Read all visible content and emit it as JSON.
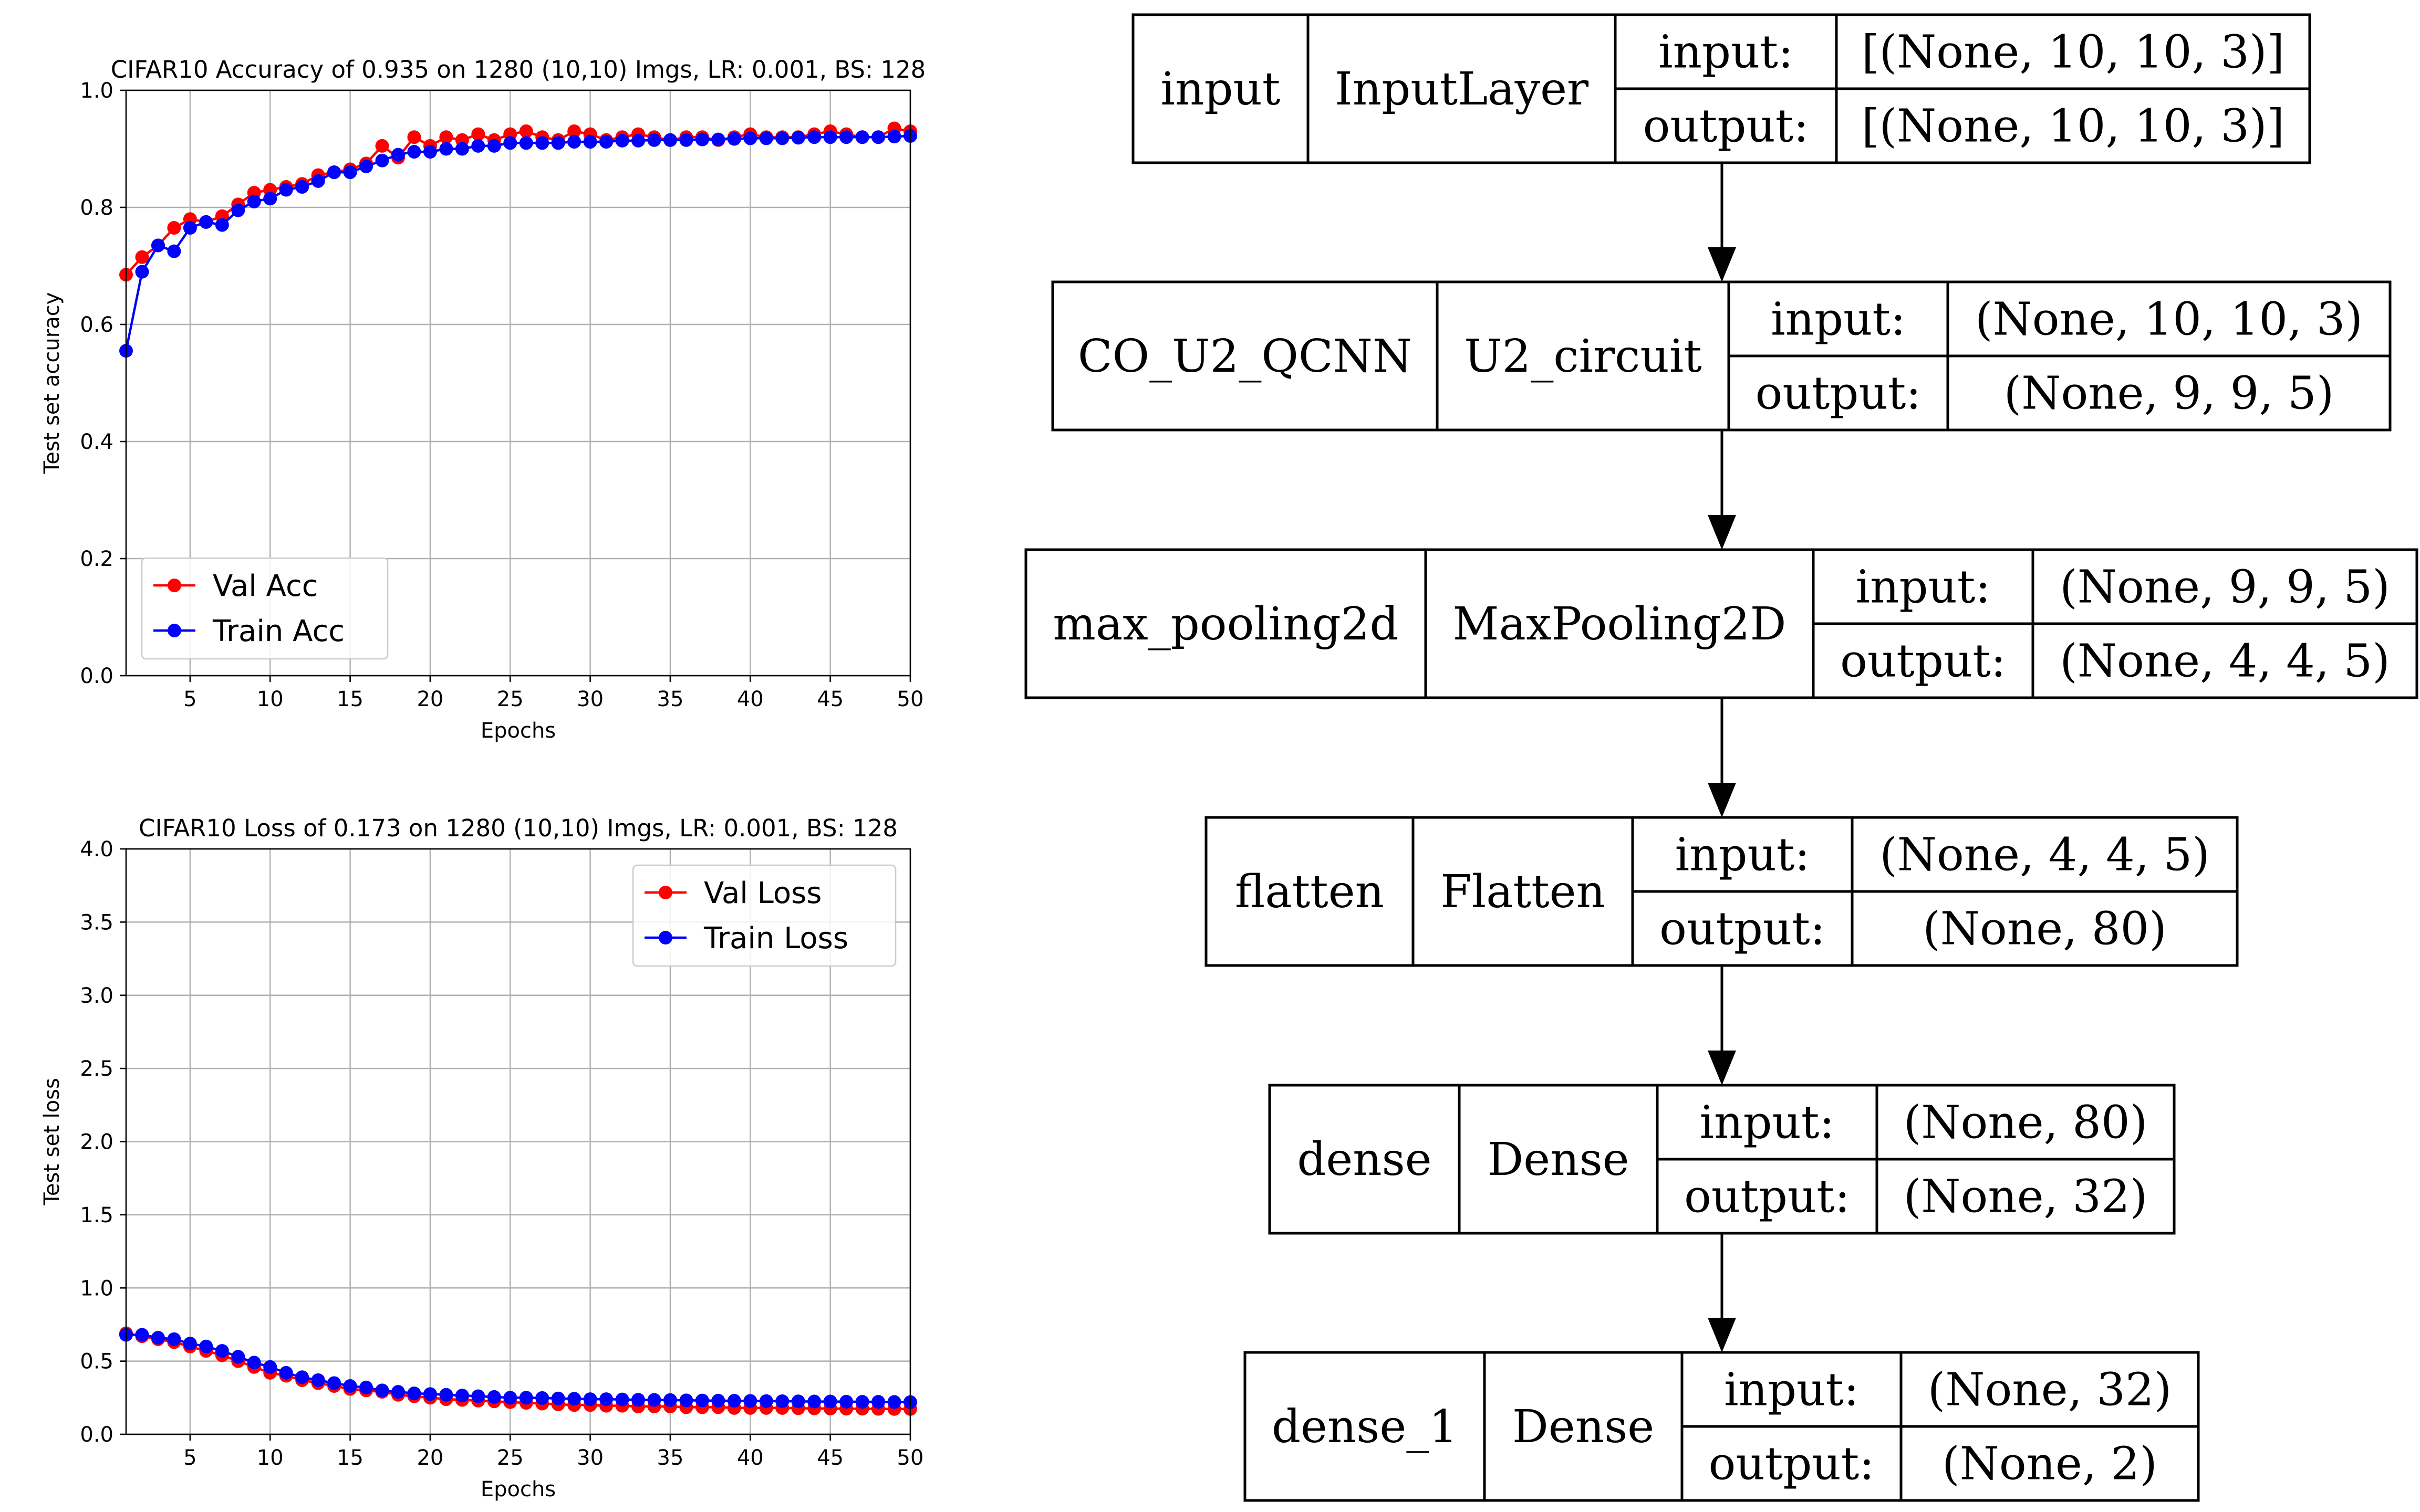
{
  "colors": {
    "val": "#ff0000",
    "train": "#0000ff",
    "grid": "#b0b0b0",
    "axis": "#000000",
    "legend_border": "#cccccc"
  },
  "chart_data": [
    {
      "type": "line",
      "title": "CIFAR10 Accuracy of 0.935 on 1280 (10,10) Imgs, LR: 0.001, BS: 128",
      "xlabel": "Epochs",
      "ylabel": "Test set accuracy",
      "xlim": [
        1,
        50
      ],
      "ylim": [
        0,
        1
      ],
      "xticks": [
        5,
        10,
        15,
        20,
        25,
        30,
        35,
        40,
        45,
        50
      ],
      "xtick_labels": [
        "5",
        "10",
        "15",
        "20",
        "25",
        "30",
        "35",
        "40",
        "45",
        "50"
      ],
      "yticks": [
        0,
        0.2,
        0.4,
        0.6,
        0.8,
        1.0
      ],
      "ytick_labels": [
        "0.0",
        "0.2",
        "0.4",
        "0.6",
        "0.8",
        "1.0"
      ],
      "grid": true,
      "legend_position": "lower-left",
      "x": [
        1,
        2,
        3,
        4,
        5,
        6,
        7,
        8,
        9,
        10,
        11,
        12,
        13,
        14,
        15,
        16,
        17,
        18,
        19,
        20,
        21,
        22,
        23,
        24,
        25,
        26,
        27,
        28,
        29,
        30,
        31,
        32,
        33,
        34,
        35,
        36,
        37,
        38,
        39,
        40,
        41,
        42,
        43,
        44,
        45,
        46,
        47,
        48,
        49,
        50
      ],
      "series": [
        {
          "name": "Val Acc",
          "color": "red",
          "values": [
            0.685,
            0.715,
            0.735,
            0.765,
            0.78,
            0.775,
            0.785,
            0.805,
            0.825,
            0.83,
            0.835,
            0.84,
            0.855,
            0.86,
            0.865,
            0.875,
            0.905,
            0.885,
            0.92,
            0.905,
            0.92,
            0.915,
            0.925,
            0.915,
            0.925,
            0.93,
            0.92,
            0.915,
            0.93,
            0.925,
            0.915,
            0.92,
            0.925,
            0.92,
            0.915,
            0.92,
            0.92,
            0.915,
            0.92,
            0.925,
            0.92,
            0.92,
            0.92,
            0.925,
            0.93,
            0.925,
            0.92,
            0.92,
            0.935,
            0.93
          ]
        },
        {
          "name": "Train Acc",
          "color": "blue",
          "values": [
            0.555,
            0.69,
            0.735,
            0.725,
            0.765,
            0.775,
            0.77,
            0.795,
            0.81,
            0.815,
            0.83,
            0.835,
            0.845,
            0.86,
            0.86,
            0.87,
            0.88,
            0.89,
            0.895,
            0.895,
            0.9,
            0.9,
            0.905,
            0.905,
            0.91,
            0.91,
            0.91,
            0.91,
            0.912,
            0.912,
            0.912,
            0.914,
            0.914,
            0.915,
            0.915,
            0.915,
            0.916,
            0.916,
            0.917,
            0.918,
            0.918,
            0.918,
            0.919,
            0.92,
            0.92,
            0.92,
            0.92,
            0.92,
            0.921,
            0.922
          ]
        }
      ]
    },
    {
      "type": "line",
      "title": "CIFAR10 Loss of 0.173 on 1280 (10,10) Imgs, LR: 0.001, BS: 128",
      "xlabel": "Epochs",
      "ylabel": "Test set loss",
      "xlim": [
        1,
        50
      ],
      "ylim": [
        0,
        4
      ],
      "xticks": [
        5,
        10,
        15,
        20,
        25,
        30,
        35,
        40,
        45,
        50
      ],
      "xtick_labels": [
        "5",
        "10",
        "15",
        "20",
        "25",
        "30",
        "35",
        "40",
        "45",
        "50"
      ],
      "yticks": [
        0,
        0.5,
        1.0,
        1.5,
        2.0,
        2.5,
        3.0,
        3.5,
        4.0
      ],
      "ytick_labels": [
        "0.0",
        "0.5",
        "1.0",
        "1.5",
        "2.0",
        "2.5",
        "3.0",
        "3.5",
        "4.0"
      ],
      "grid": true,
      "legend_position": "upper-right",
      "x": [
        1,
        2,
        3,
        4,
        5,
        6,
        7,
        8,
        9,
        10,
        11,
        12,
        13,
        14,
        15,
        16,
        17,
        18,
        19,
        20,
        21,
        22,
        23,
        24,
        25,
        26,
        27,
        28,
        29,
        30,
        31,
        32,
        33,
        34,
        35,
        36,
        37,
        38,
        39,
        40,
        41,
        42,
        43,
        44,
        45,
        46,
        47,
        48,
        49,
        50
      ],
      "series": [
        {
          "name": "Val Loss",
          "color": "red",
          "values": [
            0.69,
            0.67,
            0.65,
            0.63,
            0.6,
            0.57,
            0.54,
            0.5,
            0.46,
            0.42,
            0.4,
            0.37,
            0.35,
            0.33,
            0.31,
            0.3,
            0.29,
            0.27,
            0.26,
            0.25,
            0.24,
            0.235,
            0.23,
            0.225,
            0.22,
            0.215,
            0.21,
            0.205,
            0.2,
            0.2,
            0.195,
            0.195,
            0.19,
            0.19,
            0.19,
            0.185,
            0.185,
            0.185,
            0.18,
            0.18,
            0.18,
            0.18,
            0.178,
            0.177,
            0.176,
            0.175,
            0.175,
            0.174,
            0.173,
            0.173
          ]
        },
        {
          "name": "Train Loss",
          "color": "blue",
          "values": [
            0.68,
            0.68,
            0.66,
            0.65,
            0.62,
            0.6,
            0.57,
            0.53,
            0.49,
            0.46,
            0.42,
            0.39,
            0.37,
            0.35,
            0.33,
            0.32,
            0.3,
            0.29,
            0.28,
            0.275,
            0.27,
            0.265,
            0.26,
            0.255,
            0.25,
            0.25,
            0.248,
            0.245,
            0.243,
            0.24,
            0.24,
            0.238,
            0.236,
            0.235,
            0.234,
            0.232,
            0.231,
            0.23,
            0.229,
            0.228,
            0.227,
            0.226,
            0.225,
            0.224,
            0.224,
            0.223,
            0.222,
            0.222,
            0.221,
            0.22
          ]
        }
      ]
    }
  ],
  "diagram": {
    "nodes": [
      {
        "name": "input",
        "type": "InputLayer",
        "in_label": "input:",
        "in_shape": "[(None, 10, 10, 3)]",
        "out_label": "output:",
        "out_shape": "[(None, 10, 10, 3)]"
      },
      {
        "name": "CO_U2_QCNN",
        "type": "U2_circuit",
        "in_label": "input:",
        "in_shape": "(None, 10, 10, 3)",
        "out_label": "output:",
        "out_shape": "(None, 9, 9, 5)"
      },
      {
        "name": "max_pooling2d",
        "type": "MaxPooling2D",
        "in_label": "input:",
        "in_shape": "(None, 9, 9, 5)",
        "out_label": "output:",
        "out_shape": "(None, 4, 4, 5)"
      },
      {
        "name": "flatten",
        "type": "Flatten",
        "in_label": "input:",
        "in_shape": "(None, 4, 4, 5)",
        "out_label": "output:",
        "out_shape": "(None, 80)"
      },
      {
        "name": "dense",
        "type": "Dense",
        "in_label": "input:",
        "in_shape": "(None, 80)",
        "out_label": "output:",
        "out_shape": "(None, 32)"
      },
      {
        "name": "dense_1",
        "type": "Dense",
        "in_label": "input:",
        "in_shape": "(None, 32)",
        "out_label": "output:",
        "out_shape": "(None, 2)"
      }
    ]
  }
}
